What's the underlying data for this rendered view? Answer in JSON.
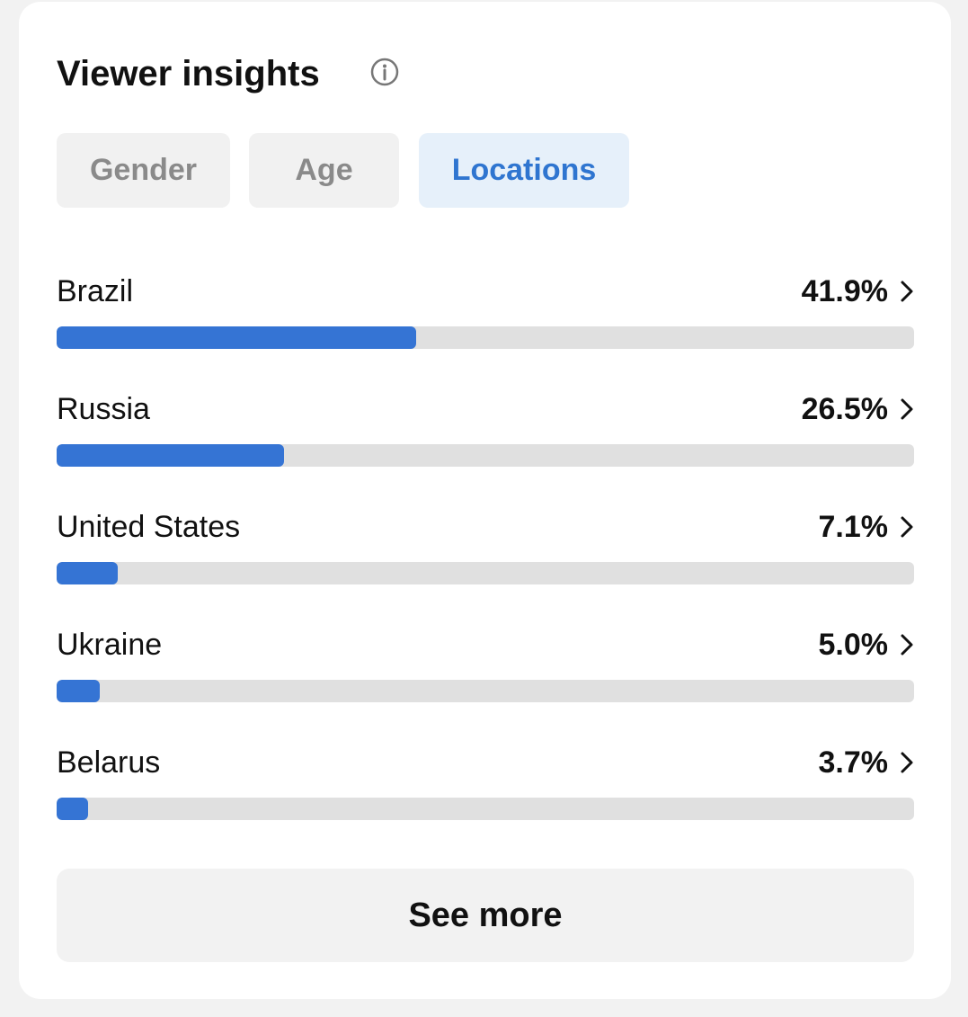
{
  "header": {
    "title": "Viewer insights"
  },
  "tabs": [
    {
      "label": "Gender",
      "selected": false
    },
    {
      "label": "Age",
      "selected": false
    },
    {
      "label": "Locations",
      "selected": true
    }
  ],
  "locations": {
    "xlim": [
      0,
      100
    ],
    "rows": [
      {
        "name": "Brazil",
        "value": 41.9,
        "value_label": "41.9%"
      },
      {
        "name": "Russia",
        "value": 26.5,
        "value_label": "26.5%"
      },
      {
        "name": "United States",
        "value": 7.1,
        "value_label": "7.1%"
      },
      {
        "name": "Ukraine",
        "value": 5.0,
        "value_label": "5.0%"
      },
      {
        "name": "Belarus",
        "value": 3.7,
        "value_label": "3.7%"
      }
    ]
  },
  "button": {
    "label": "See more"
  }
}
